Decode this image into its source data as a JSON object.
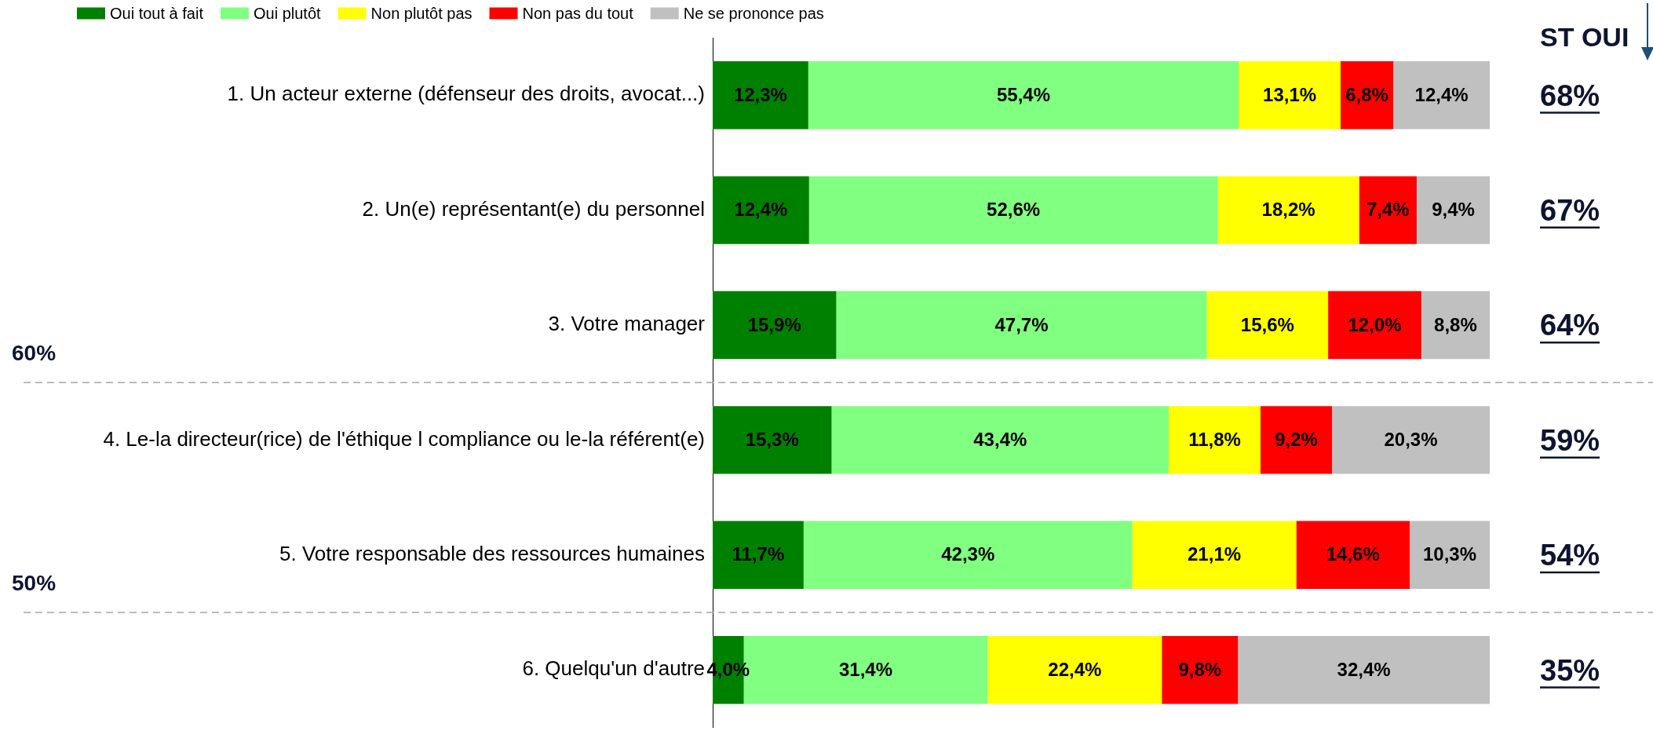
{
  "chart_data": {
    "type": "bar",
    "orientation": "horizontal",
    "stacked": true,
    "categories": [
      "1. Un acteur externe (défenseur des droits, avocat...)",
      "2. Un(e) représentant(e) du personnel",
      "3. Votre manager",
      "4. Le-la directeur(rice) de l'éthique l compliance ou le-la référent(e)",
      "5. Votre responsable des ressources humaines",
      "6. Quelqu'un d'autre"
    ],
    "series": [
      {
        "name": "Oui tout à fait",
        "color": "#008000",
        "values": [
          12.3,
          12.4,
          15.9,
          15.3,
          11.7,
          4.0
        ],
        "value_labels": [
          "12,3%",
          "12,4%",
          "15,9%",
          "15,3%",
          "11,7%",
          "4,0%"
        ]
      },
      {
        "name": "Oui plutôt",
        "color": "#80ff80",
        "values": [
          55.4,
          52.6,
          47.7,
          43.4,
          42.3,
          31.4
        ],
        "value_labels": [
          "55,4%",
          "52,6%",
          "47,7%",
          "43,4%",
          "42,3%",
          "31,4%"
        ]
      },
      {
        "name": "Non plutôt pas",
        "color": "#ffff00",
        "values": [
          13.1,
          18.2,
          15.6,
          11.8,
          21.1,
          22.4
        ],
        "value_labels": [
          "13,1%",
          "18,2%",
          "15,6%",
          "11,8%",
          "21,1%",
          "22,4%"
        ]
      },
      {
        "name": "Non pas du tout",
        "color": "#ff0000",
        "values": [
          6.8,
          7.4,
          12.0,
          9.2,
          14.6,
          9.8
        ],
        "value_labels": [
          "6,8%",
          "7,4%",
          "12,0%",
          "9,2%",
          "14,6%",
          "9,8%"
        ]
      },
      {
        "name": "Ne se prononce pas",
        "color": "#c0c0c0",
        "values": [
          12.4,
          9.4,
          8.8,
          20.3,
          10.3,
          32.4
        ],
        "value_labels": [
          "12,4%",
          "9,4%",
          "8,8%",
          "20,3%",
          "10,3%",
          "32,4%"
        ]
      }
    ],
    "xlim": [
      0,
      100
    ],
    "tick_labels": "y",
    "legend": "top left",
    "annotations": [
      "ST OUI",
      "68%",
      "67%",
      "64%",
      "59%",
      "54%",
      "35%",
      "60%",
      "50%"
    ]
  }
}
